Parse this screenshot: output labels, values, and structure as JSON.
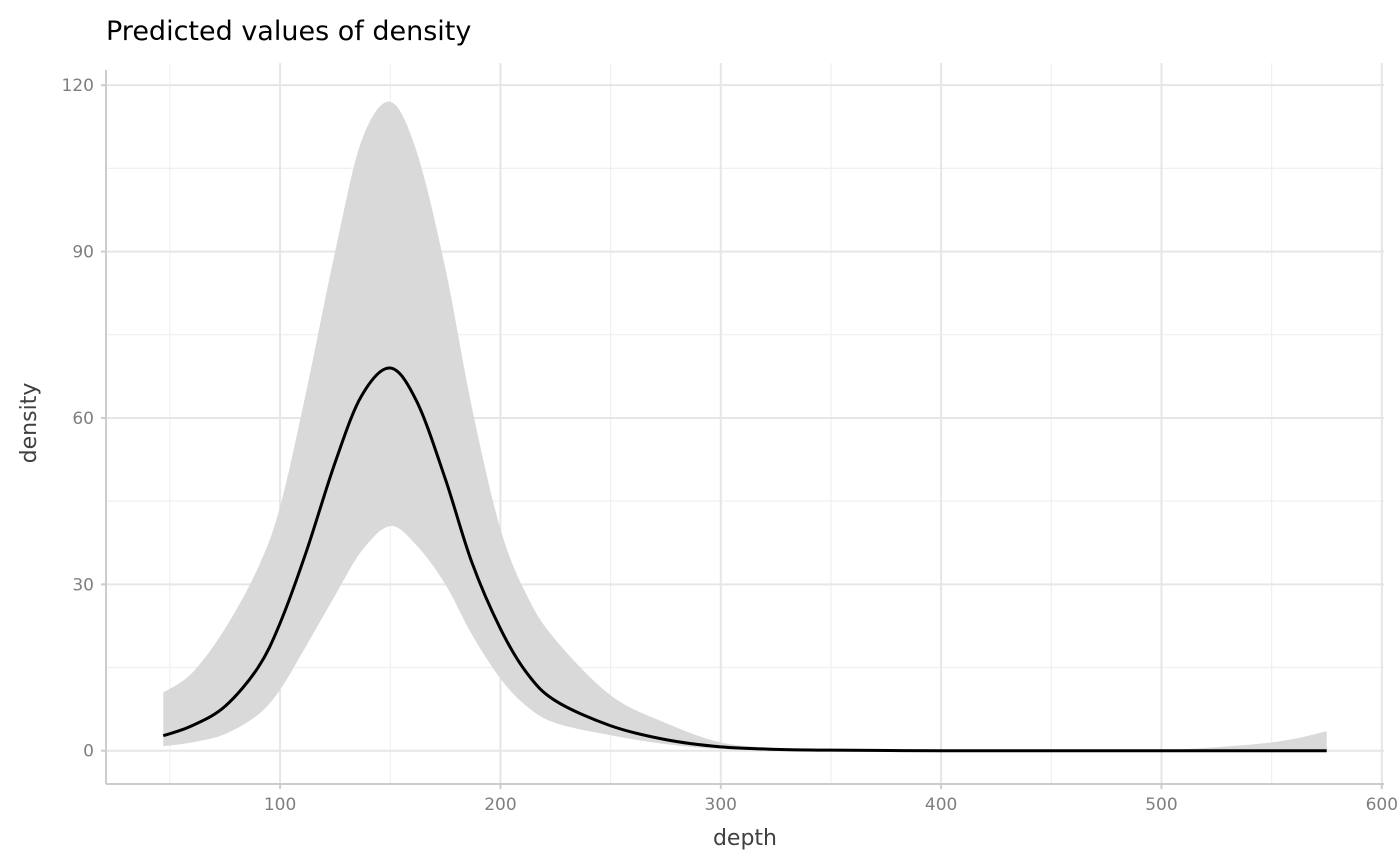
{
  "chart_data": {
    "type": "line",
    "title": "Predicted values of density",
    "xlabel": "depth",
    "ylabel": "density",
    "xlim": [
      21,
      601
    ],
    "ylim": [
      -6,
      124
    ],
    "xticks": [
      100,
      200,
      300,
      400,
      500,
      600
    ],
    "yticks": [
      0,
      30,
      60,
      90,
      120
    ],
    "xtick_labels": [
      "100",
      "200",
      "300",
      "400",
      "500",
      "600"
    ],
    "ytick_labels": [
      "0",
      "30",
      "60",
      "90",
      "120"
    ],
    "grid": true,
    "series": [
      {
        "name": "predicted",
        "color": "#000000",
        "x": [
          47,
          60,
          75,
          90,
          100,
          112,
          125,
          137,
          150,
          162,
          175,
          187,
          200,
          212,
          225,
          250,
          275,
          300,
          325,
          350,
          400,
          450,
          500,
          550,
          575
        ],
        "y": [
          2.7,
          4.5,
          8,
          15,
          23,
          36,
          52,
          64,
          69,
          63,
          49,
          34,
          22,
          14,
          9,
          4.5,
          2,
          0.7,
          0.25,
          0.1,
          0,
          0,
          0,
          0,
          0
        ],
        "ci_upper": [
          10.5,
          14,
          22,
          33,
          44,
          65,
          90,
          110,
          117,
          108,
          87,
          62,
          40,
          28,
          20,
          10,
          5,
          1.5,
          0.5,
          0.2,
          0.05,
          0.05,
          0.1,
          1.5,
          3.5
        ],
        "ci_lower": [
          0.8,
          1.5,
          3,
          6.5,
          11,
          19,
          28,
          36,
          40.5,
          37,
          30,
          21,
          13,
          8,
          5,
          2.8,
          1.2,
          0.3,
          0.1,
          0,
          0,
          0,
          0,
          0,
          0
        ],
        "ci_color": "#d9d9d9"
      }
    ]
  }
}
